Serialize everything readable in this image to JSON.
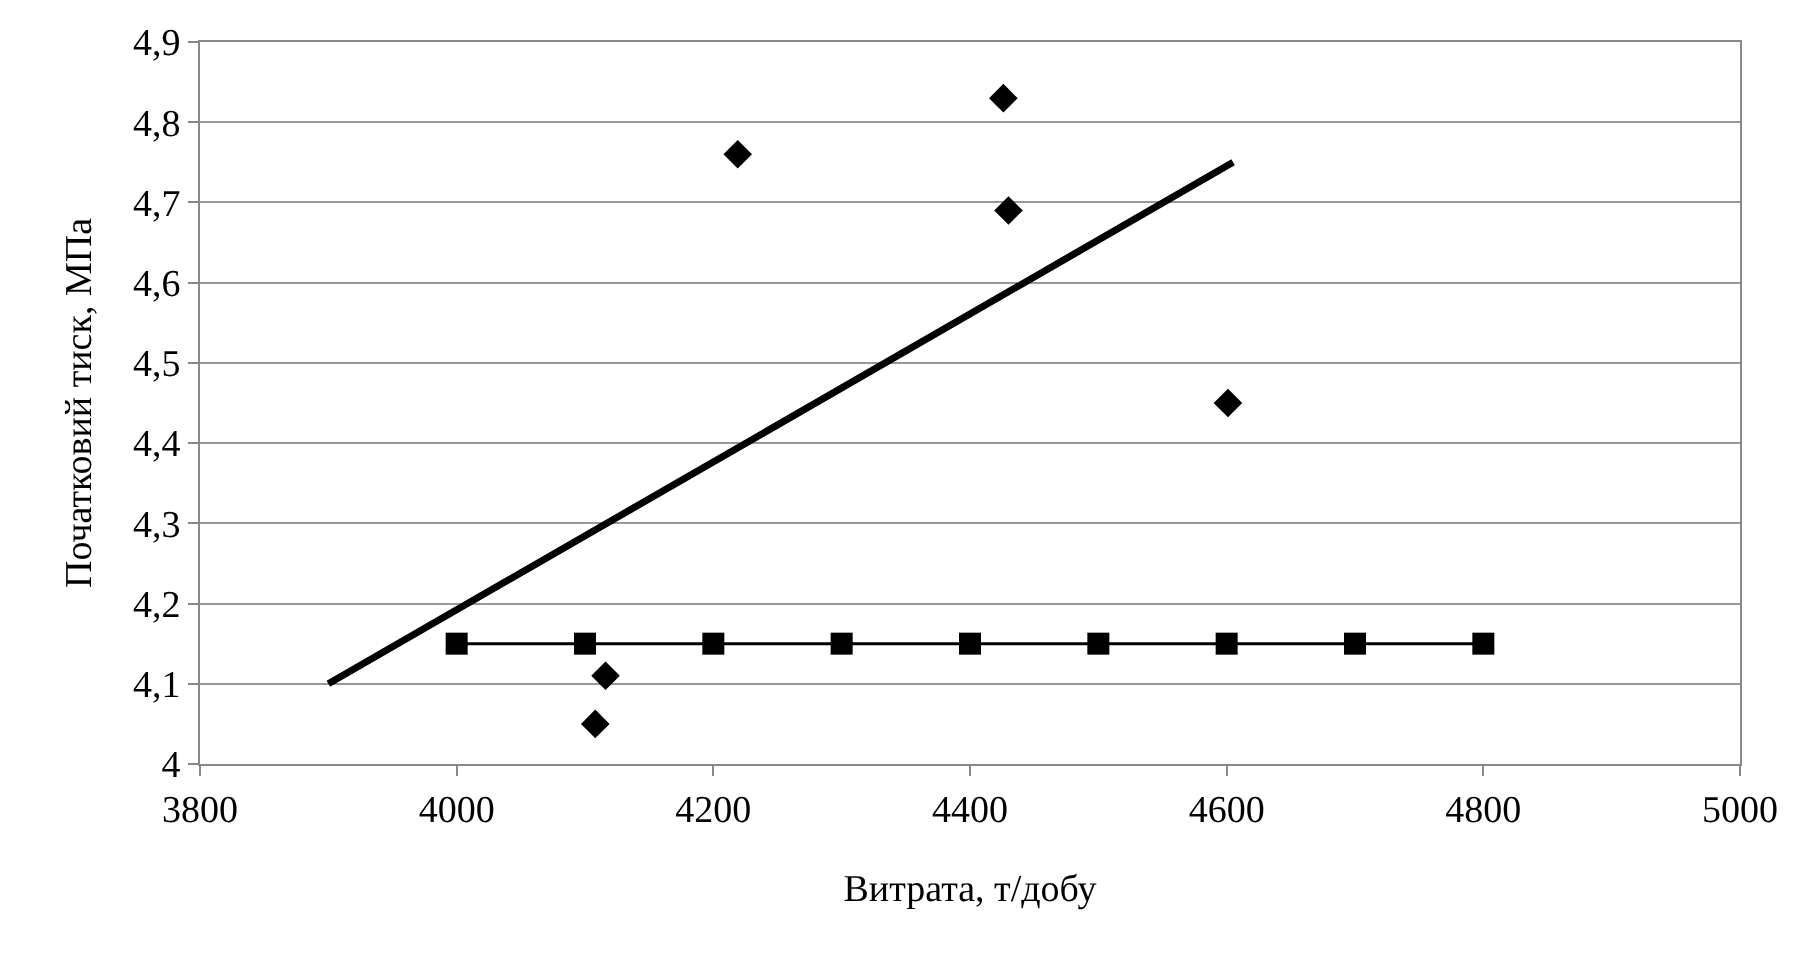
{
  "chart_data": {
    "type": "scatter",
    "xlabel": "Витрата, т/добу",
    "ylabel": "Початковий тиск, МПа",
    "xlim": [
      3800,
      5000
    ],
    "xticks": [
      3800,
      4000,
      4200,
      4400,
      4600,
      4800,
      5000
    ],
    "ylim": [
      4,
      4.9
    ],
    "yticks": [
      {
        "value": 4,
        "label": "4"
      },
      {
        "value": 4.1,
        "label": "4,1"
      },
      {
        "value": 4.2,
        "label": "4,2"
      },
      {
        "value": 4.3,
        "label": "4,3"
      },
      {
        "value": 4.4,
        "label": "4,4"
      },
      {
        "value": 4.5,
        "label": "4,5"
      },
      {
        "value": 4.6,
        "label": "4,6"
      },
      {
        "value": 4.7,
        "label": "4,7"
      },
      {
        "value": 4.8,
        "label": "4,8"
      },
      {
        "value": 4.9,
        "label": "4,9"
      }
    ],
    "grid": "y",
    "series": [
      {
        "marker": "diamond",
        "color": "#000000",
        "x": [
          4108,
          4116,
          4219,
          4426,
          4430,
          4601
        ],
        "values": [
          4.05,
          4.11,
          4.76,
          4.83,
          4.69,
          4.45
        ]
      },
      {
        "type": "line",
        "marker": "none",
        "line_style": "solid",
        "color": "#000000",
        "x": [
          3900,
          4605
        ],
        "values": [
          4.1,
          4.75
        ]
      },
      {
        "type": "line",
        "marker": "square",
        "line_style": "solid",
        "color": "#000000",
        "x": [
          4000,
          4100,
          4200,
          4300,
          4400,
          4500,
          4600,
          4700,
          4800
        ],
        "values": [
          4.15,
          4.15,
          4.15,
          4.15,
          4.15,
          4.15,
          4.15,
          4.15,
          4.15
        ]
      }
    ]
  }
}
